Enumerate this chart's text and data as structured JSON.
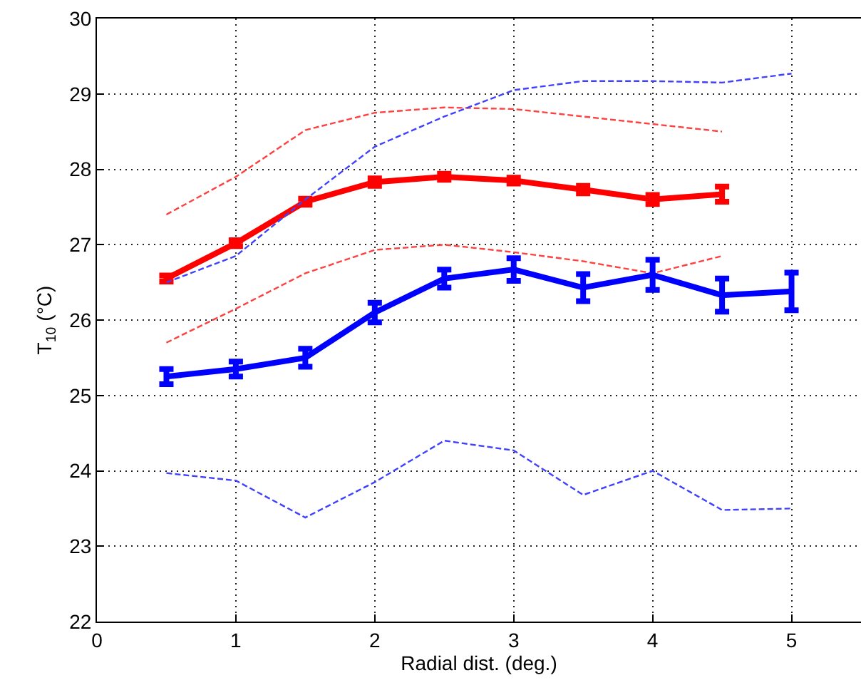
{
  "chart_data": {
    "type": "line",
    "xlabel": "Radial dist. (deg.)",
    "ylabel": "T$_{10}$ (°C)",
    "xlim": [
      0,
      5.5
    ],
    "xticks": [
      0,
      1,
      2,
      3,
      4,
      5
    ],
    "ylim": [
      22,
      30
    ],
    "yticks": [
      22,
      23,
      24,
      25,
      26,
      27,
      28,
      29,
      30
    ],
    "grid": true,
    "series": [
      {
        "color": "#ff0000",
        "line_style": "solid",
        "x": [
          0.5,
          1,
          1.5,
          2,
          2.5,
          3,
          3.5,
          4,
          4.5
        ],
        "values": [
          26.55,
          27.02,
          27.57,
          27.83,
          27.9,
          27.85,
          27.73,
          27.6,
          27.67
        ],
        "errors": [
          0.04,
          0.04,
          0.04,
          0.05,
          0.04,
          0.04,
          0.05,
          0.06,
          0.1
        ]
      },
      {
        "color": "#ff4040",
        "line_style": "dashed",
        "x": [
          0.5,
          1,
          1.5,
          2,
          2.5,
          3,
          3.5,
          4,
          4.5
        ],
        "values": [
          27.4,
          27.9,
          28.52,
          28.75,
          28.82,
          28.8,
          28.7,
          28.6,
          28.5
        ]
      },
      {
        "color": "#ff4040",
        "line_style": "dashed",
        "x": [
          0.5,
          1,
          1.5,
          2,
          2.5,
          3,
          3.5,
          4,
          4.5
        ],
        "values": [
          25.7,
          26.15,
          26.62,
          26.93,
          27.0,
          26.9,
          26.78,
          26.62,
          26.85
        ]
      },
      {
        "color": "#0000ff",
        "line_style": "solid",
        "x": [
          0.5,
          1,
          1.5,
          2,
          2.5,
          3,
          3.5,
          4,
          4.5,
          5
        ],
        "values": [
          25.25,
          25.35,
          25.5,
          26.1,
          26.55,
          26.67,
          26.43,
          26.6,
          26.33,
          26.38
        ],
        "errors": [
          0.1,
          0.1,
          0.12,
          0.13,
          0.12,
          0.15,
          0.18,
          0.2,
          0.22,
          0.25
        ]
      },
      {
        "color": "#4040ff",
        "line_style": "dashed",
        "x": [
          0.5,
          1,
          1.5,
          2,
          2.5,
          3,
          3.5,
          4,
          4.5,
          5
        ],
        "values": [
          26.5,
          26.85,
          27.6,
          28.3,
          28.7,
          29.05,
          29.17,
          29.17,
          29.15,
          29.27
        ]
      },
      {
        "color": "#4040ff",
        "line_style": "dashed",
        "x": [
          0.5,
          1,
          1.5,
          2,
          2.5,
          3,
          3.5,
          4,
          4.5,
          5
        ],
        "values": [
          23.97,
          23.87,
          23.38,
          23.85,
          24.4,
          24.27,
          23.68,
          24.0,
          23.48,
          23.5
        ]
      }
    ]
  }
}
